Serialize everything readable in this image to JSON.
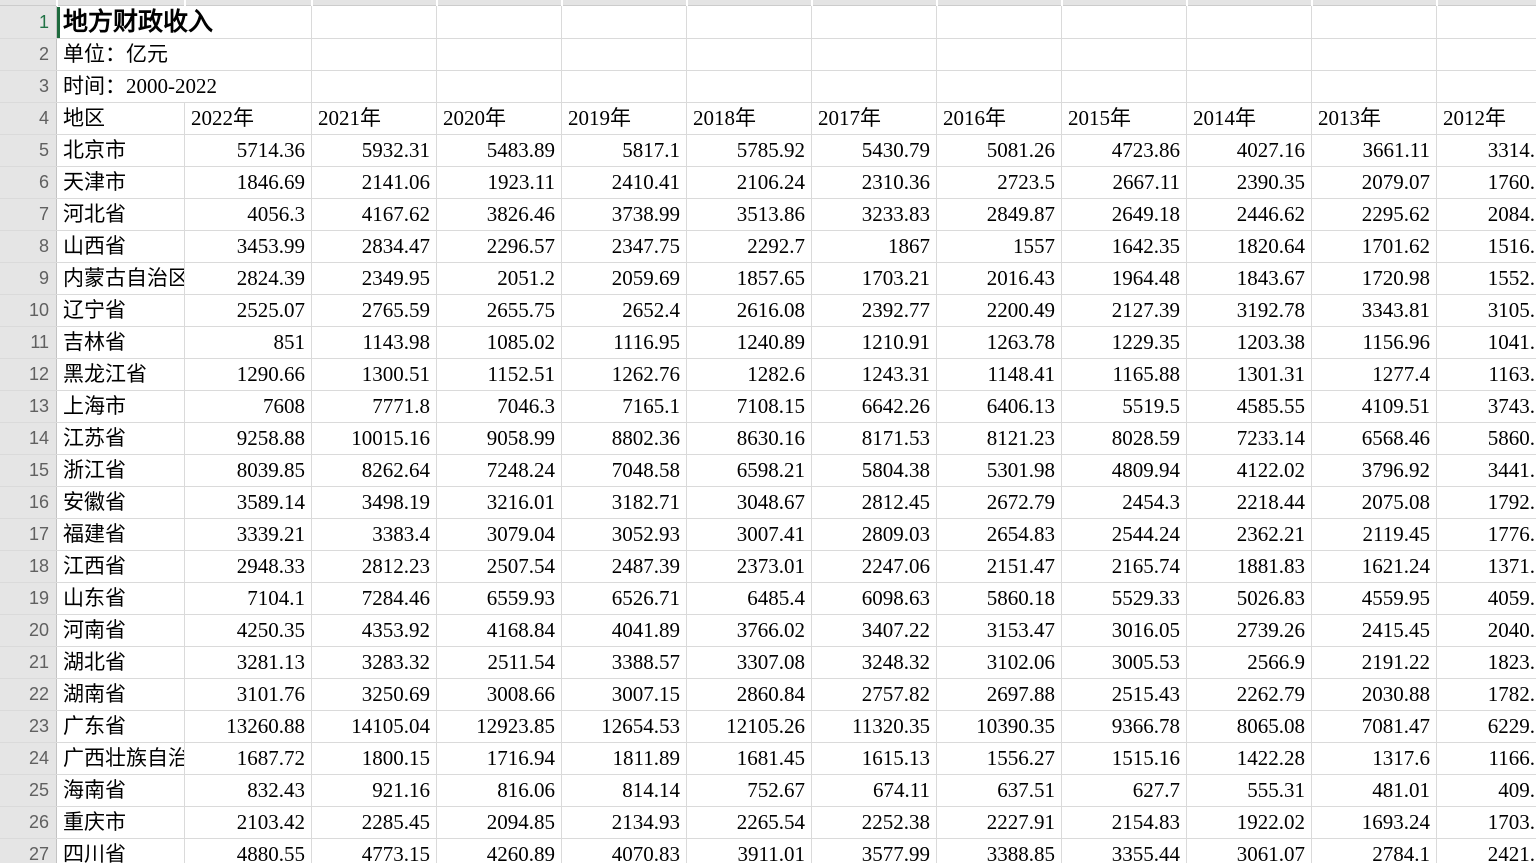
{
  "sheet": {
    "title": "地方财政收入",
    "unit_label": "单位：亿元",
    "time_label": "时间：2000-2022",
    "header": [
      "地区",
      "2022年",
      "2021年",
      "2020年",
      "2019年",
      "2018年",
      "2017年",
      "2016年",
      "2015年",
      "2014年",
      "2013年",
      "2012年"
    ],
    "row_numbers_start": 1,
    "row_numbers_end": 27,
    "rows": [
      {
        "region": "北京市",
        "values": [
          "5714.36",
          "5932.31",
          "5483.89",
          "5817.1",
          "5785.92",
          "5430.79",
          "5081.26",
          "4723.86",
          "4027.16",
          "3661.11",
          "3314."
        ]
      },
      {
        "region": "天津市",
        "values": [
          "1846.69",
          "2141.06",
          "1923.11",
          "2410.41",
          "2106.24",
          "2310.36",
          "2723.5",
          "2667.11",
          "2390.35",
          "2079.07",
          "1760."
        ]
      },
      {
        "region": "河北省",
        "values": [
          "4056.3",
          "4167.62",
          "3826.46",
          "3738.99",
          "3513.86",
          "3233.83",
          "2849.87",
          "2649.18",
          "2446.62",
          "2295.62",
          "2084."
        ]
      },
      {
        "region": "山西省",
        "values": [
          "3453.99",
          "2834.47",
          "2296.57",
          "2347.75",
          "2292.7",
          "1867",
          "1557",
          "1642.35",
          "1820.64",
          "1701.62",
          "1516."
        ]
      },
      {
        "region": "内蒙古自治区",
        "values": [
          "2824.39",
          "2349.95",
          "2051.2",
          "2059.69",
          "1857.65",
          "1703.21",
          "2016.43",
          "1964.48",
          "1843.67",
          "1720.98",
          "1552."
        ]
      },
      {
        "region": "辽宁省",
        "values": [
          "2525.07",
          "2765.59",
          "2655.75",
          "2652.4",
          "2616.08",
          "2392.77",
          "2200.49",
          "2127.39",
          "3192.78",
          "3343.81",
          "3105."
        ]
      },
      {
        "region": "吉林省",
        "values": [
          "851",
          "1143.98",
          "1085.02",
          "1116.95",
          "1240.89",
          "1210.91",
          "1263.78",
          "1229.35",
          "1203.38",
          "1156.96",
          "1041."
        ]
      },
      {
        "region": "黑龙江省",
        "values": [
          "1290.66",
          "1300.51",
          "1152.51",
          "1262.76",
          "1282.6",
          "1243.31",
          "1148.41",
          "1165.88",
          "1301.31",
          "1277.4",
          "1163."
        ]
      },
      {
        "region": "上海市",
        "values": [
          "7608",
          "7771.8",
          "7046.3",
          "7165.1",
          "7108.15",
          "6642.26",
          "6406.13",
          "5519.5",
          "4585.55",
          "4109.51",
          "3743."
        ]
      },
      {
        "region": "江苏省",
        "values": [
          "9258.88",
          "10015.16",
          "9058.99",
          "8802.36",
          "8630.16",
          "8171.53",
          "8121.23",
          "8028.59",
          "7233.14",
          "6568.46",
          "5860."
        ]
      },
      {
        "region": "浙江省",
        "values": [
          "8039.85",
          "8262.64",
          "7248.24",
          "7048.58",
          "6598.21",
          "5804.38",
          "5301.98",
          "4809.94",
          "4122.02",
          "3796.92",
          "3441."
        ]
      },
      {
        "region": "安徽省",
        "values": [
          "3589.14",
          "3498.19",
          "3216.01",
          "3182.71",
          "3048.67",
          "2812.45",
          "2672.79",
          "2454.3",
          "2218.44",
          "2075.08",
          "1792."
        ]
      },
      {
        "region": "福建省",
        "values": [
          "3339.21",
          "3383.4",
          "3079.04",
          "3052.93",
          "3007.41",
          "2809.03",
          "2654.83",
          "2544.24",
          "2362.21",
          "2119.45",
          "1776."
        ]
      },
      {
        "region": "江西省",
        "values": [
          "2948.33",
          "2812.23",
          "2507.54",
          "2487.39",
          "2373.01",
          "2247.06",
          "2151.47",
          "2165.74",
          "1881.83",
          "1621.24",
          "1371."
        ]
      },
      {
        "region": "山东省",
        "values": [
          "7104.1",
          "7284.46",
          "6559.93",
          "6526.71",
          "6485.4",
          "6098.63",
          "5860.18",
          "5529.33",
          "5026.83",
          "4559.95",
          "4059."
        ]
      },
      {
        "region": "河南省",
        "values": [
          "4250.35",
          "4353.92",
          "4168.84",
          "4041.89",
          "3766.02",
          "3407.22",
          "3153.47",
          "3016.05",
          "2739.26",
          "2415.45",
          "2040."
        ]
      },
      {
        "region": "湖北省",
        "values": [
          "3281.13",
          "3283.32",
          "2511.54",
          "3388.57",
          "3307.08",
          "3248.32",
          "3102.06",
          "3005.53",
          "2566.9",
          "2191.22",
          "1823."
        ]
      },
      {
        "region": "湖南省",
        "values": [
          "3101.76",
          "3250.69",
          "3008.66",
          "3007.15",
          "2860.84",
          "2757.82",
          "2697.88",
          "2515.43",
          "2262.79",
          "2030.88",
          "1782."
        ]
      },
      {
        "region": "广东省",
        "values": [
          "13260.88",
          "14105.04",
          "12923.85",
          "12654.53",
          "12105.26",
          "11320.35",
          "10390.35",
          "9366.78",
          "8065.08",
          "7081.47",
          "6229."
        ]
      },
      {
        "region": "广西壮族自治区",
        "values": [
          "1687.72",
          "1800.15",
          "1716.94",
          "1811.89",
          "1681.45",
          "1615.13",
          "1556.27",
          "1515.16",
          "1422.28",
          "1317.6",
          "1166."
        ]
      },
      {
        "region": "海南省",
        "values": [
          "832.43",
          "921.16",
          "816.06",
          "814.14",
          "752.67",
          "674.11",
          "637.51",
          "627.7",
          "555.31",
          "481.01",
          "409."
        ]
      },
      {
        "region": "重庆市",
        "values": [
          "2103.42",
          "2285.45",
          "2094.85",
          "2134.93",
          "2265.54",
          "2252.38",
          "2227.91",
          "2154.83",
          "1922.02",
          "1693.24",
          "1703."
        ]
      },
      {
        "region": "四川省",
        "values": [
          "4880.55",
          "4773.15",
          "4260.89",
          "4070.83",
          "3911.01",
          "3577.99",
          "3388.85",
          "3355.44",
          "3061.07",
          "2784.1",
          "2421."
        ]
      }
    ]
  },
  "colors": {
    "accent_green": "#1f6b3e",
    "active_row_number": "#217346",
    "gridline": "#dadada",
    "gutter_bg": "#e5e5e5",
    "gutter_border": "#c3c3c3",
    "row_number_text": "#606060"
  }
}
